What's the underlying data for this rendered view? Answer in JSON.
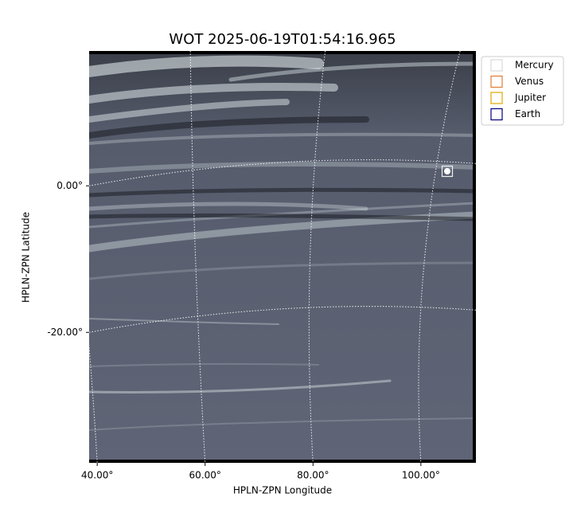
{
  "chart_data": {
    "type": "image",
    "title": "WOT 2025-06-19T01:54:16.965",
    "x_label": "HPLN-ZPN Longitude",
    "y_label": "HPLN-ZPN Latitude",
    "xlim": [
      38.5,
      110.2
    ],
    "ylim": [
      -37.8,
      18.4
    ],
    "xticks": [
      {
        "value": 40,
        "label": "40.00°"
      },
      {
        "value": 60,
        "label": "60.00°"
      },
      {
        "value": 80,
        "label": "80.00°"
      },
      {
        "value": 100,
        "label": "100.00°"
      }
    ],
    "yticks": [
      {
        "value": 0,
        "label": "0.00°"
      },
      {
        "value": -20,
        "label": "-20.00°"
      }
    ],
    "grid": true,
    "legend": [
      {
        "name": "Mercury",
        "color": "#d9d9d9"
      },
      {
        "name": "Venus",
        "color": "#e07b39"
      },
      {
        "name": "Jupiter",
        "color": "#e0a800"
      },
      {
        "name": "Earth",
        "color": "#000080"
      }
    ]
  }
}
